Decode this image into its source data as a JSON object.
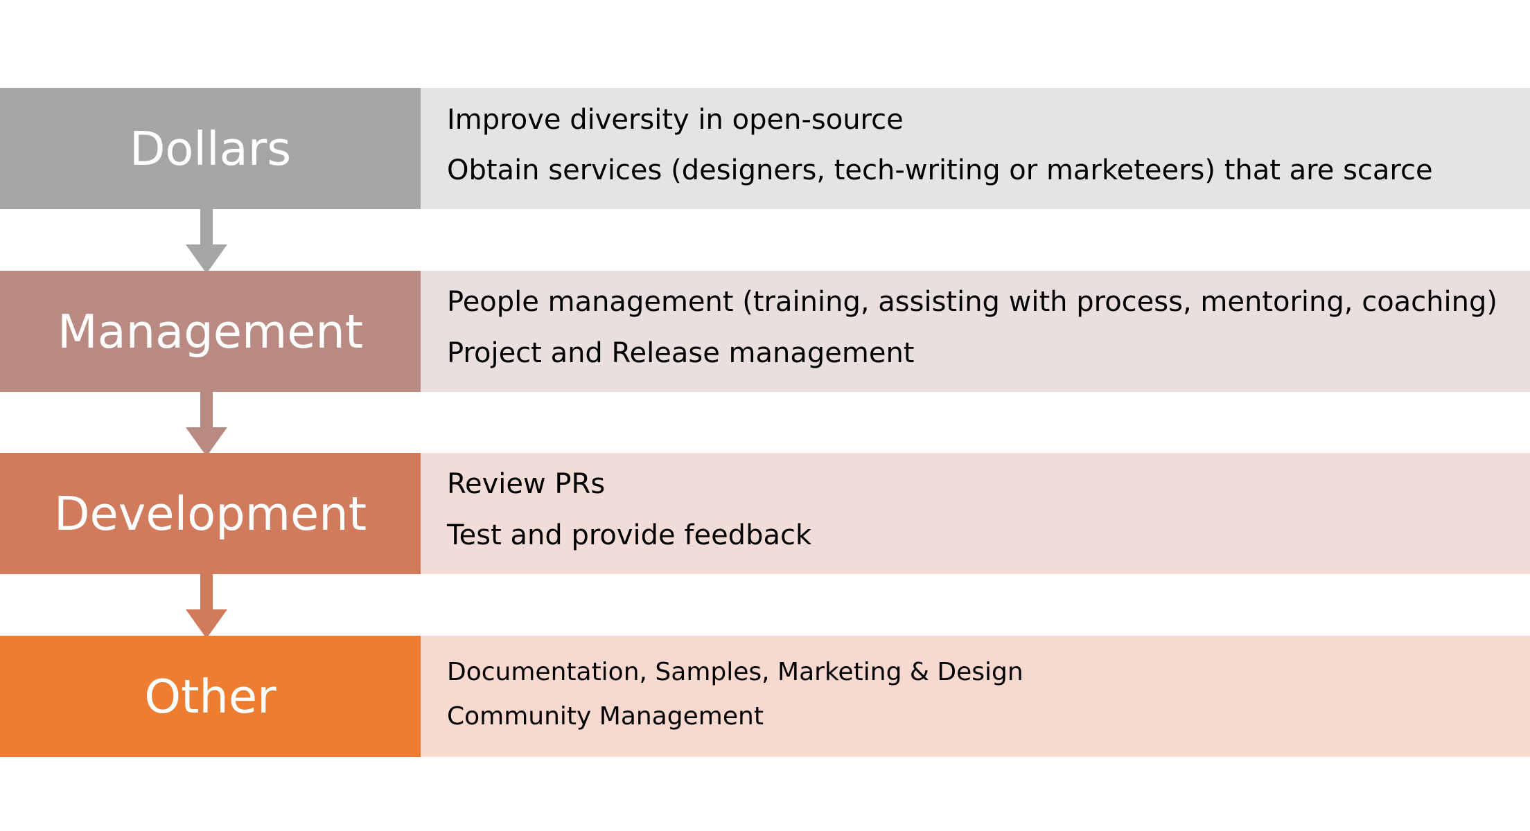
{
  "rows": [
    {
      "label": "Dollars",
      "label_color": "#a5a5a5",
      "content_color": "#e4e4e4",
      "items": [
        "Improve diversity in open-source",
        "Obtain services (designers, tech-writing or marketeers) that are scarce"
      ]
    },
    {
      "label": "Management",
      "label_color": "#b98a82",
      "content_color": "#eadfdf",
      "items": [
        "People management (training, assisting with process, mentoring, coaching)",
        "Project and Release management"
      ]
    },
    {
      "label": "Development",
      "label_color": "#d27a5c",
      "content_color": "#f1dcd7",
      "items": [
        "Review PRs",
        "Test and provide feedback"
      ]
    },
    {
      "label": "Other",
      "label_color": "#ed7d31",
      "content_color": "#f8d9d0",
      "items": [
        "Documentation, Samples, Marketing & Design",
        "Community Management"
      ]
    }
  ],
  "arrows": [
    {
      "color": "#a5a5a5"
    },
    {
      "color": "#b98a82"
    },
    {
      "color": "#d27a5c"
    }
  ]
}
